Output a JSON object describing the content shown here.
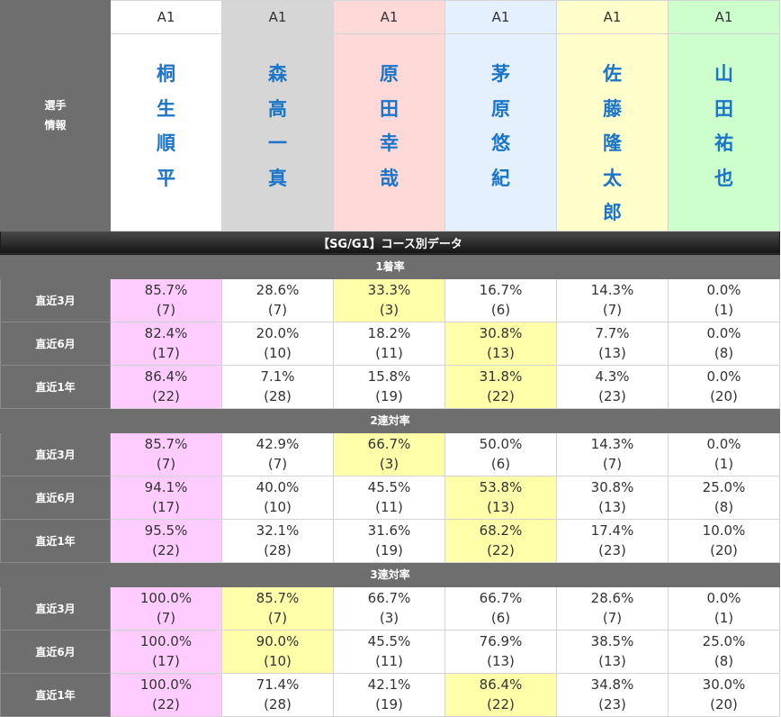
{
  "header": {
    "label_line1": "選手",
    "label_line2": "情報"
  },
  "racers": [
    {
      "class": "A1",
      "name": [
        "桐",
        "生",
        "順",
        "平"
      ],
      "bg": "#ffffff"
    },
    {
      "class": "A1",
      "name": [
        "森",
        "高",
        "一",
        "真"
      ],
      "bg": "#d6d6d6"
    },
    {
      "class": "A1",
      "name": [
        "原",
        "田",
        "幸",
        "哉"
      ],
      "bg": "#ffd8d8"
    },
    {
      "class": "A1",
      "name": [
        "茅",
        "原",
        "悠",
        "紀"
      ],
      "bg": "#e4f0fd"
    },
    {
      "class": "A1",
      "name": [
        "佐",
        "藤",
        "隆",
        "太",
        "郎"
      ],
      "bg": "#ffffcc"
    },
    {
      "class": "A1",
      "name": [
        "山",
        "田",
        "祐",
        "也"
      ],
      "bg": "#ccffcc"
    }
  ],
  "section_title": "【SG/G1】コース別データ",
  "metrics": [
    {
      "title": "1着率",
      "rows": [
        {
          "label": "直近3月",
          "cells": [
            {
              "rate": "85.7%",
              "count": "(7)",
              "hl": "top1"
            },
            {
              "rate": "28.6%",
              "count": "(7)",
              "hl": ""
            },
            {
              "rate": "33.3%",
              "count": "(3)",
              "hl": "top2"
            },
            {
              "rate": "16.7%",
              "count": "(6)",
              "hl": ""
            },
            {
              "rate": "14.3%",
              "count": "(7)",
              "hl": ""
            },
            {
              "rate": "0.0%",
              "count": "(1)",
              "hl": ""
            }
          ]
        },
        {
          "label": "直近6月",
          "cells": [
            {
              "rate": "82.4%",
              "count": "(17)",
              "hl": "top1"
            },
            {
              "rate": "20.0%",
              "count": "(10)",
              "hl": ""
            },
            {
              "rate": "18.2%",
              "count": "(11)",
              "hl": ""
            },
            {
              "rate": "30.8%",
              "count": "(13)",
              "hl": "top2"
            },
            {
              "rate": "7.7%",
              "count": "(13)",
              "hl": ""
            },
            {
              "rate": "0.0%",
              "count": "(8)",
              "hl": ""
            }
          ]
        },
        {
          "label": "直近1年",
          "cells": [
            {
              "rate": "86.4%",
              "count": "(22)",
              "hl": "top1"
            },
            {
              "rate": "7.1%",
              "count": "(28)",
              "hl": ""
            },
            {
              "rate": "15.8%",
              "count": "(19)",
              "hl": ""
            },
            {
              "rate": "31.8%",
              "count": "(22)",
              "hl": "top2"
            },
            {
              "rate": "4.3%",
              "count": "(23)",
              "hl": ""
            },
            {
              "rate": "0.0%",
              "count": "(20)",
              "hl": ""
            }
          ]
        }
      ]
    },
    {
      "title": "2連対率",
      "rows": [
        {
          "label": "直近3月",
          "cells": [
            {
              "rate": "85.7%",
              "count": "(7)",
              "hl": "top1"
            },
            {
              "rate": "42.9%",
              "count": "(7)",
              "hl": ""
            },
            {
              "rate": "66.7%",
              "count": "(3)",
              "hl": "top2"
            },
            {
              "rate": "50.0%",
              "count": "(6)",
              "hl": ""
            },
            {
              "rate": "14.3%",
              "count": "(7)",
              "hl": ""
            },
            {
              "rate": "0.0%",
              "count": "(1)",
              "hl": ""
            }
          ]
        },
        {
          "label": "直近6月",
          "cells": [
            {
              "rate": "94.1%",
              "count": "(17)",
              "hl": "top1"
            },
            {
              "rate": "40.0%",
              "count": "(10)",
              "hl": ""
            },
            {
              "rate": "45.5%",
              "count": "(11)",
              "hl": ""
            },
            {
              "rate": "53.8%",
              "count": "(13)",
              "hl": "top2"
            },
            {
              "rate": "30.8%",
              "count": "(13)",
              "hl": ""
            },
            {
              "rate": "25.0%",
              "count": "(8)",
              "hl": ""
            }
          ]
        },
        {
          "label": "直近1年",
          "cells": [
            {
              "rate": "95.5%",
              "count": "(22)",
              "hl": "top1"
            },
            {
              "rate": "32.1%",
              "count": "(28)",
              "hl": ""
            },
            {
              "rate": "31.6%",
              "count": "(19)",
              "hl": ""
            },
            {
              "rate": "68.2%",
              "count": "(22)",
              "hl": "top2"
            },
            {
              "rate": "17.4%",
              "count": "(23)",
              "hl": ""
            },
            {
              "rate": "10.0%",
              "count": "(20)",
              "hl": ""
            }
          ]
        }
      ]
    },
    {
      "title": "3連対率",
      "rows": [
        {
          "label": "直近3月",
          "cells": [
            {
              "rate": "100.0%",
              "count": "(7)",
              "hl": "top1"
            },
            {
              "rate": "85.7%",
              "count": "(7)",
              "hl": "top2"
            },
            {
              "rate": "66.7%",
              "count": "(3)",
              "hl": ""
            },
            {
              "rate": "66.7%",
              "count": "(6)",
              "hl": ""
            },
            {
              "rate": "28.6%",
              "count": "(7)",
              "hl": ""
            },
            {
              "rate": "0.0%",
              "count": "(1)",
              "hl": ""
            }
          ]
        },
        {
          "label": "直近6月",
          "cells": [
            {
              "rate": "100.0%",
              "count": "(17)",
              "hl": "top1"
            },
            {
              "rate": "90.0%",
              "count": "(10)",
              "hl": "top2"
            },
            {
              "rate": "45.5%",
              "count": "(11)",
              "hl": ""
            },
            {
              "rate": "76.9%",
              "count": "(13)",
              "hl": ""
            },
            {
              "rate": "38.5%",
              "count": "(13)",
              "hl": ""
            },
            {
              "rate": "25.0%",
              "count": "(8)",
              "hl": ""
            }
          ]
        },
        {
          "label": "直近1年",
          "cells": [
            {
              "rate": "100.0%",
              "count": "(22)",
              "hl": "top1"
            },
            {
              "rate": "71.4%",
              "count": "(28)",
              "hl": ""
            },
            {
              "rate": "42.1%",
              "count": "(19)",
              "hl": ""
            },
            {
              "rate": "86.4%",
              "count": "(22)",
              "hl": "top2"
            },
            {
              "rate": "34.8%",
              "count": "(23)",
              "hl": ""
            },
            {
              "rate": "30.0%",
              "count": "(20)",
              "hl": ""
            }
          ]
        }
      ]
    }
  ]
}
